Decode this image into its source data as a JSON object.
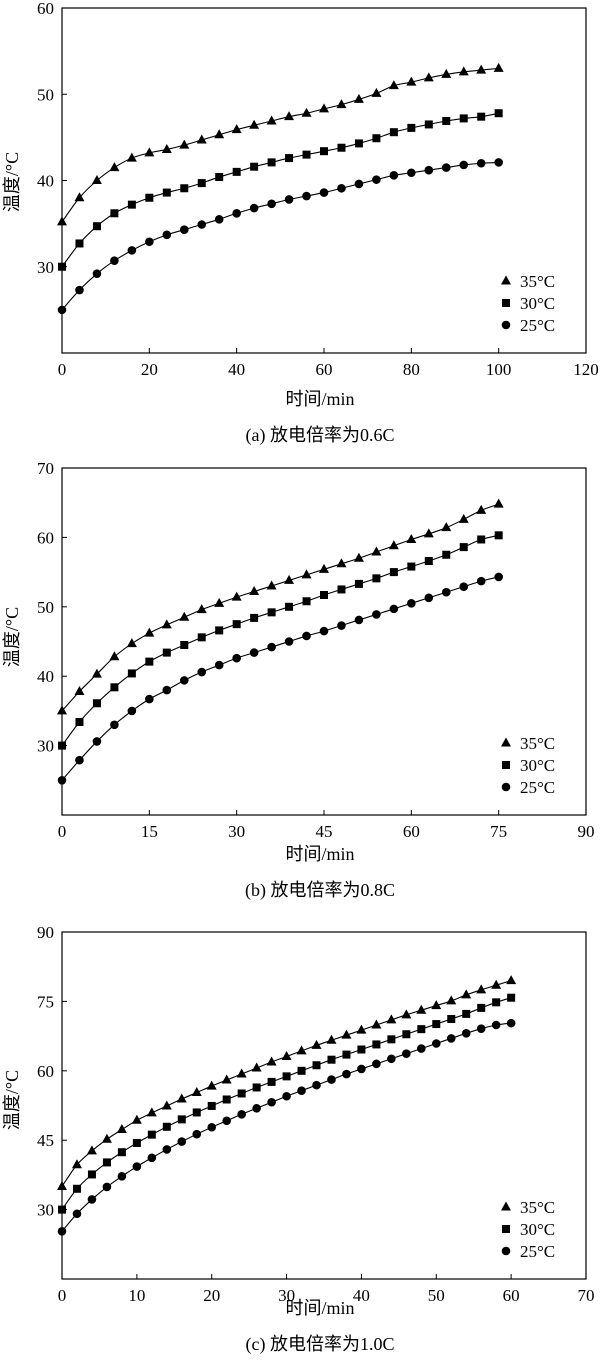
{
  "chart_data": [
    {
      "type": "line",
      "caption": "(a) 放电倍率为0.6C",
      "xlabel": "时间/min",
      "ylabel": "温度/°C",
      "xlim": [
        0,
        120
      ],
      "ylim": [
        20,
        60
      ],
      "xticks": [
        "0",
        "20",
        "40",
        "60",
        "80",
        "100",
        "120"
      ],
      "yticks": [
        "30",
        "40",
        "50",
        "60"
      ],
      "grid": false,
      "legend_position": "bottom-right",
      "x": [
        0,
        4,
        8,
        12,
        16,
        20,
        24,
        28,
        32,
        36,
        40,
        44,
        48,
        52,
        56,
        60,
        64,
        68,
        72,
        76,
        80,
        84,
        88,
        92,
        96,
        100
      ],
      "series": [
        {
          "name": "35°C",
          "marker": "triangle",
          "values": [
            35.2,
            38.0,
            40.0,
            41.5,
            42.6,
            43.2,
            43.6,
            44.1,
            44.7,
            45.3,
            45.9,
            46.4,
            46.9,
            47.4,
            47.8,
            48.3,
            48.8,
            49.4,
            50.1,
            51.0,
            51.4,
            51.9,
            52.3,
            52.6,
            52.8,
            53.0
          ]
        },
        {
          "name": "30°C",
          "marker": "square",
          "values": [
            30.0,
            32.7,
            34.7,
            36.2,
            37.2,
            38.0,
            38.6,
            39.1,
            39.7,
            40.4,
            41.0,
            41.6,
            42.1,
            42.6,
            43.0,
            43.4,
            43.8,
            44.3,
            44.9,
            45.6,
            46.1,
            46.5,
            46.9,
            47.2,
            47.4,
            47.8
          ]
        },
        {
          "name": "25°C",
          "marker": "circle",
          "values": [
            25.0,
            27.3,
            29.2,
            30.7,
            31.9,
            32.9,
            33.7,
            34.3,
            34.9,
            35.5,
            36.2,
            36.8,
            37.3,
            37.8,
            38.2,
            38.6,
            39.1,
            39.6,
            40.1,
            40.6,
            40.9,
            41.2,
            41.5,
            41.8,
            42.0,
            42.1
          ]
        }
      ]
    },
    {
      "type": "line",
      "caption": "(b) 放电倍率为0.8C",
      "xlabel": "时间/min",
      "ylabel": "温度/°C",
      "xlim": [
        0,
        90
      ],
      "ylim": [
        20,
        70
      ],
      "xticks": [
        "0",
        "15",
        "30",
        "45",
        "60",
        "75",
        "90"
      ],
      "yticks": [
        "30",
        "40",
        "50",
        "60",
        "70"
      ],
      "grid": false,
      "legend_position": "bottom-right",
      "x": [
        0,
        3,
        6,
        9,
        12,
        15,
        18,
        21,
        24,
        27,
        30,
        33,
        36,
        39,
        42,
        45,
        48,
        51,
        54,
        57,
        60,
        63,
        66,
        69,
        72,
        75
      ],
      "series": [
        {
          "name": "35°C",
          "marker": "triangle",
          "values": [
            35.0,
            37.8,
            40.3,
            42.8,
            44.7,
            46.2,
            47.4,
            48.5,
            49.6,
            50.5,
            51.4,
            52.2,
            53.0,
            53.8,
            54.6,
            55.4,
            56.2,
            57.0,
            57.9,
            58.8,
            59.7,
            60.5,
            61.4,
            62.6,
            63.9,
            64.8
          ]
        },
        {
          "name": "30°C",
          "marker": "square",
          "values": [
            30.0,
            33.4,
            36.1,
            38.4,
            40.4,
            42.1,
            43.4,
            44.5,
            45.6,
            46.6,
            47.5,
            48.4,
            49.2,
            50.0,
            50.8,
            51.7,
            52.5,
            53.3,
            54.1,
            55.0,
            55.8,
            56.6,
            57.5,
            58.6,
            59.7,
            60.3
          ]
        },
        {
          "name": "25°C",
          "marker": "circle",
          "values": [
            25.0,
            27.9,
            30.6,
            33.0,
            35.0,
            36.7,
            38.0,
            39.4,
            40.6,
            41.6,
            42.6,
            43.4,
            44.2,
            45.0,
            45.8,
            46.5,
            47.3,
            48.1,
            48.9,
            49.7,
            50.5,
            51.3,
            52.1,
            52.9,
            53.7,
            54.3
          ]
        }
      ]
    },
    {
      "type": "line",
      "caption": "(c) 放电倍率为1.0C",
      "xlabel": "时间/min",
      "ylabel": "温度/°C",
      "xlim": [
        0,
        70
      ],
      "ylim": [
        15,
        90
      ],
      "xticks": [
        "0",
        "10",
        "20",
        "30",
        "40",
        "50",
        "60",
        "70"
      ],
      "yticks": [
        "30",
        "45",
        "60",
        "75",
        "90"
      ],
      "grid": false,
      "legend_position": "bottom-right",
      "x": [
        0,
        2,
        4,
        6,
        8,
        10,
        12,
        14,
        16,
        18,
        20,
        22,
        24,
        26,
        28,
        30,
        32,
        34,
        36,
        38,
        40,
        42,
        44,
        46,
        48,
        50,
        52,
        54,
        56,
        58,
        60
      ],
      "series": [
        {
          "name": "35°C",
          "marker": "triangle",
          "values": [
            35.0,
            39.7,
            42.7,
            45.2,
            47.3,
            49.3,
            50.9,
            52.4,
            53.9,
            55.3,
            56.7,
            58.0,
            59.3,
            60.6,
            61.9,
            63.1,
            64.3,
            65.5,
            66.6,
            67.7,
            68.8,
            69.9,
            71.0,
            72.1,
            73.1,
            74.1,
            75.1,
            76.4,
            77.5,
            78.5,
            79.5
          ]
        },
        {
          "name": "30°C",
          "marker": "square",
          "values": [
            30.0,
            34.5,
            37.6,
            40.2,
            42.4,
            44.4,
            46.2,
            47.9,
            49.5,
            51.0,
            52.4,
            53.8,
            55.1,
            56.4,
            57.6,
            58.8,
            60.0,
            61.2,
            62.4,
            63.5,
            64.6,
            65.7,
            66.8,
            67.9,
            69.0,
            70.1,
            71.2,
            72.3,
            73.6,
            74.8,
            75.8
          ]
        },
        {
          "name": "25°C",
          "marker": "circle",
          "values": [
            25.3,
            29.1,
            32.2,
            34.9,
            37.2,
            39.3,
            41.2,
            43.0,
            44.7,
            46.3,
            47.8,
            49.2,
            50.6,
            51.9,
            53.2,
            54.5,
            55.7,
            56.9,
            58.1,
            59.3,
            60.4,
            61.5,
            62.6,
            63.7,
            64.8,
            65.9,
            67.0,
            68.1,
            69.1,
            69.9,
            70.3
          ]
        }
      ]
    }
  ]
}
